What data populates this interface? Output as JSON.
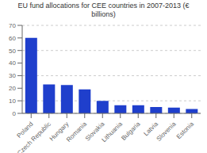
{
  "chart_data": {
    "type": "bar",
    "title": "EU fund allocations for CEE countries in 2007-2013 (€\nbillions)",
    "categories": [
      "Poland",
      "Czech Republic",
      "Hungary",
      "Romania",
      "Slovakia",
      "Lithuania",
      "Bulgaria",
      "Latvia",
      "Slovenia",
      "Estonia"
    ],
    "values": [
      60,
      23,
      22.5,
      19,
      10,
      6.5,
      6.5,
      5,
      4.5,
      3.5
    ],
    "color": "#1f3fcc",
    "ylim": [
      0,
      70
    ],
    "yticks": [
      0,
      10,
      20,
      30,
      40,
      50,
      60,
      70
    ],
    "grid": true
  }
}
